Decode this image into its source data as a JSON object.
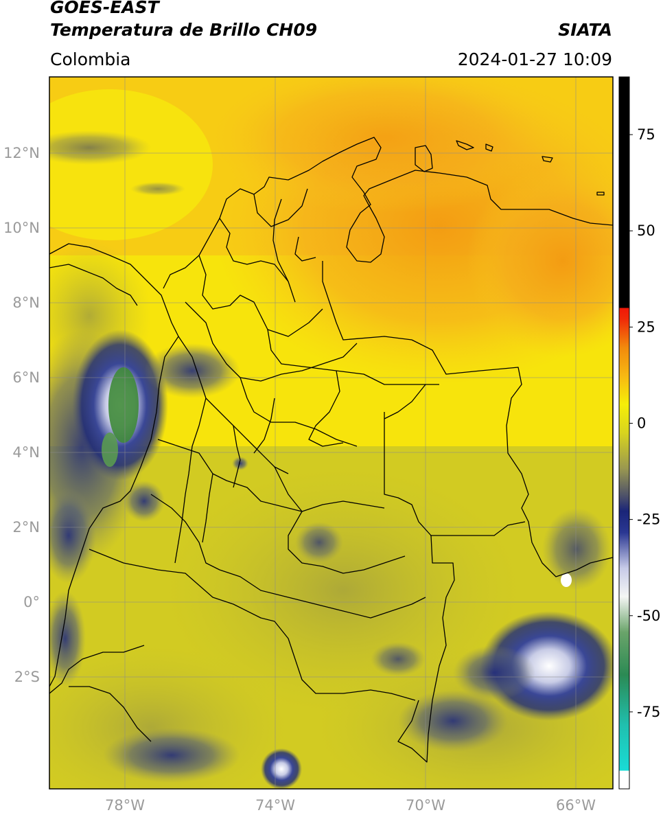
{
  "header": {
    "satellite": "GOES-EAST",
    "product": "Temperatura de Brillo CH09",
    "region": "Colombia",
    "agency": "SIATA",
    "datetime": "2024-01-27 10:09"
  },
  "map": {
    "lat_labels": [
      "12°N",
      "10°N",
      "8°N",
      "6°N",
      "4°N",
      "2°N",
      "0°",
      "2°S"
    ],
    "lon_labels": [
      "78°W",
      "74°W",
      "70°W",
      "66°W"
    ],
    "extent": {
      "lon_min": -80,
      "lon_max": -65,
      "lat_min": -5,
      "lat_max": 14
    },
    "colors": {
      "warm_orange": "#f6a81a",
      "yellow": "#f5ea0b",
      "olive": "#bdb72a",
      "navy": "#1f2a7a",
      "white": "#ffffff",
      "green": "#3f8a3a"
    }
  },
  "colorbar": {
    "ticks": [
      "75",
      "50",
      "25",
      "0",
      "-25",
      "-50",
      "-75"
    ],
    "tick_values": [
      75,
      50,
      25,
      0,
      -25,
      -50,
      -75
    ],
    "range": [
      -95,
      90
    ]
  }
}
